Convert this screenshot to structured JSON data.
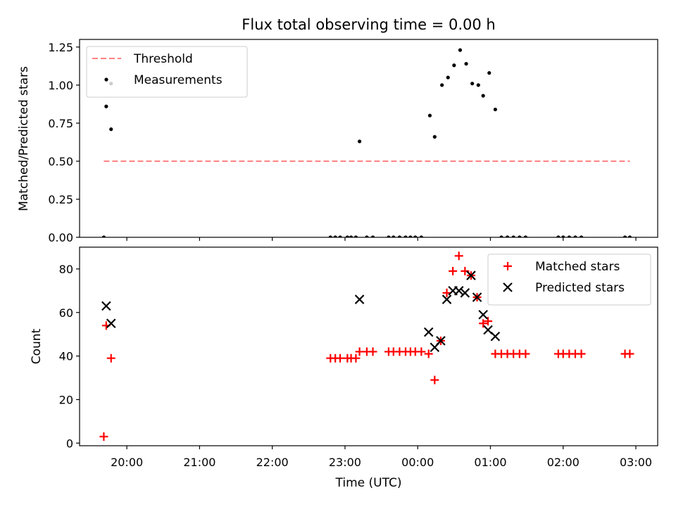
{
  "figure": {
    "title": "Flux total observing time = 0.00 h"
  },
  "chart_data": [
    {
      "type": "scatter",
      "ylabel": "Matched/Predicted stars",
      "xlabel": "",
      "xlim": [
        "19:21",
        "03:18"
      ],
      "ylim": [
        0,
        1.3
      ],
      "yticks": [
        0.0,
        0.25,
        0.5,
        0.75,
        1.0,
        1.25
      ],
      "ytick_labels": [
        "0.00",
        "0.25",
        "0.50",
        "0.75",
        "1.00",
        "1.25"
      ],
      "legend_position": "top-left",
      "threshold": {
        "name": "Threshold",
        "y": 0.5,
        "x_start": "19:41",
        "x_end": "02:55",
        "color": "#ff8080",
        "style": "dashed"
      },
      "series": [
        {
          "name": "Measurements",
          "marker": "dot",
          "color": "#000000",
          "points": [
            [
              "19:41",
              0.0
            ],
            [
              "19:47",
              1.01
            ],
            [
              "19:43",
              0.86
            ],
            [
              "19:47",
              0.71
            ],
            [
              "22:48",
              0.0
            ],
            [
              "22:52",
              0.0
            ],
            [
              "22:56",
              0.0
            ],
            [
              "23:02",
              0.0
            ],
            [
              "23:05",
              0.0
            ],
            [
              "23:09",
              0.0
            ],
            [
              "23:12",
              0.63
            ],
            [
              "23:18",
              0.0
            ],
            [
              "23:23",
              0.0
            ],
            [
              "23:36",
              0.0
            ],
            [
              "23:40",
              0.0
            ],
            [
              "23:45",
              0.0
            ],
            [
              "23:50",
              0.0
            ],
            [
              "23:54",
              0.0
            ],
            [
              "23:58",
              0.0
            ],
            [
              "00:03",
              0.0
            ],
            [
              "00:10",
              0.8
            ],
            [
              "00:14",
              0.66
            ],
            [
              "00:20",
              1.0
            ],
            [
              "00:25",
              1.05
            ],
            [
              "00:30",
              1.13
            ],
            [
              "00:35",
              1.23
            ],
            [
              "00:40",
              1.14
            ],
            [
              "00:45",
              1.01
            ],
            [
              "00:50",
              1.0
            ],
            [
              "00:54",
              0.93
            ],
            [
              "00:59",
              1.08
            ],
            [
              "01:04",
              0.84
            ],
            [
              "01:09",
              0.0
            ],
            [
              "01:14",
              0.0
            ],
            [
              "01:19",
              0.0
            ],
            [
              "01:24",
              0.0
            ],
            [
              "01:29",
              0.0
            ],
            [
              "01:56",
              0.0
            ],
            [
              "02:00",
              0.0
            ],
            [
              "02:05",
              0.0
            ],
            [
              "02:10",
              0.0
            ],
            [
              "02:15",
              0.0
            ],
            [
              "02:51",
              0.0
            ],
            [
              "02:55",
              0.0
            ]
          ]
        }
      ]
    },
    {
      "type": "scatter",
      "ylabel": "Count",
      "xlabel": "Time (UTC)",
      "xlim": [
        "19:21",
        "03:18"
      ],
      "ylim": [
        -1.2,
        90
      ],
      "yticks": [
        0,
        20,
        40,
        60,
        80
      ],
      "ytick_labels": [
        "0",
        "20",
        "40",
        "60",
        "80"
      ],
      "xticks": [
        "20:00",
        "21:00",
        "22:00",
        "23:00",
        "00:00",
        "01:00",
        "02:00",
        "03:00"
      ],
      "xtick_labels": [
        "20:00",
        "21:00",
        "22:00",
        "23:00",
        "00:00",
        "01:00",
        "02:00",
        "03:00"
      ],
      "legend_position": "top-right",
      "series": [
        {
          "name": "Matched stars",
          "marker": "plus",
          "color": "#ff0000",
          "points": [
            [
              "19:41",
              3
            ],
            [
              "19:43",
              54
            ],
            [
              "19:47",
              39
            ],
            [
              "22:48",
              39
            ],
            [
              "22:52",
              39
            ],
            [
              "22:56",
              39
            ],
            [
              "23:02",
              39
            ],
            [
              "23:05",
              39
            ],
            [
              "23:09",
              39
            ],
            [
              "23:12",
              42
            ],
            [
              "23:18",
              42
            ],
            [
              "23:23",
              42
            ],
            [
              "23:36",
              42
            ],
            [
              "23:40",
              42
            ],
            [
              "23:45",
              42
            ],
            [
              "23:50",
              42
            ],
            [
              "23:54",
              42
            ],
            [
              "23:58",
              42
            ],
            [
              "00:03",
              42
            ],
            [
              "00:09",
              41
            ],
            [
              "00:14",
              29
            ],
            [
              "00:19",
              47
            ],
            [
              "00:24",
              69
            ],
            [
              "00:29",
              79
            ],
            [
              "00:34",
              86
            ],
            [
              "00:39",
              79
            ],
            [
              "00:44",
              77
            ],
            [
              "00:49",
              67
            ],
            [
              "00:54",
              55
            ],
            [
              "00:58",
              56
            ],
            [
              "01:04",
              41
            ],
            [
              "01:09",
              41
            ],
            [
              "01:14",
              41
            ],
            [
              "01:19",
              41
            ],
            [
              "01:24",
              41
            ],
            [
              "01:29",
              41
            ],
            [
              "01:56",
              41
            ],
            [
              "02:00",
              41
            ],
            [
              "02:05",
              41
            ],
            [
              "02:10",
              41
            ],
            [
              "02:15",
              41
            ],
            [
              "02:51",
              41
            ],
            [
              "02:55",
              41
            ]
          ]
        },
        {
          "name": "Predicted stars",
          "marker": "x",
          "color": "#000000",
          "points": [
            [
              "19:43",
              63
            ],
            [
              "19:47",
              55
            ],
            [
              "23:12",
              66
            ],
            [
              "00:09",
              51
            ],
            [
              "00:14",
              44
            ],
            [
              "00:19",
              47
            ],
            [
              "00:24",
              66
            ],
            [
              "00:29",
              70
            ],
            [
              "00:34",
              70
            ],
            [
              "00:39",
              69
            ],
            [
              "00:44",
              77
            ],
            [
              "00:49",
              67
            ],
            [
              "00:54",
              59
            ],
            [
              "00:58",
              52
            ],
            [
              "01:04",
              49
            ]
          ]
        }
      ]
    }
  ]
}
